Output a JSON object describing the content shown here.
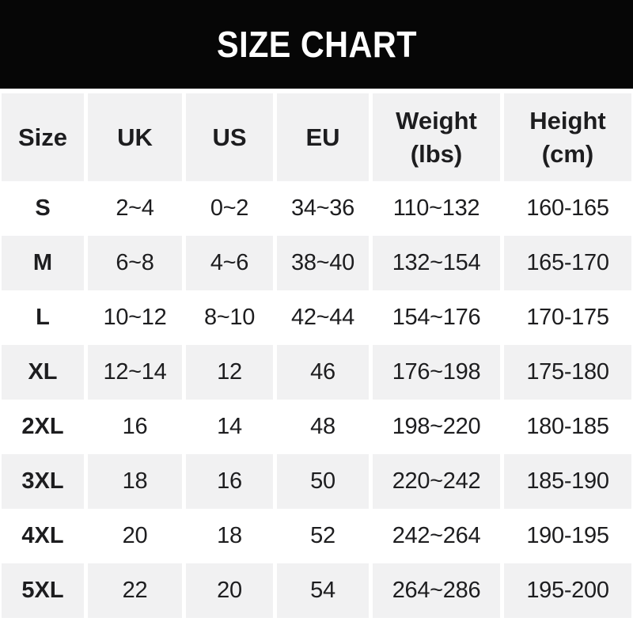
{
  "banner": {
    "title": "SIZE CHART",
    "bg_color": "#060606",
    "text_color": "#ffffff"
  },
  "table": {
    "colors": {
      "header_bg": "#f1f1f2",
      "alt_row_bg": "#f1f1f2",
      "row_bg": "#ffffff",
      "text": "#1d1d1f"
    },
    "columns": [
      {
        "key": "size",
        "lines": [
          "Size"
        ]
      },
      {
        "key": "uk",
        "lines": [
          "UK"
        ]
      },
      {
        "key": "us",
        "lines": [
          "US"
        ]
      },
      {
        "key": "eu",
        "lines": [
          "EU"
        ]
      },
      {
        "key": "weight",
        "lines": [
          "Weight",
          "(lbs)"
        ]
      },
      {
        "key": "height",
        "lines": [
          "Height",
          "(cm)"
        ]
      }
    ],
    "rows": [
      [
        "S",
        "2~4",
        "0~2",
        "34~36",
        "110~132",
        "160-165"
      ],
      [
        "M",
        "6~8",
        "4~6",
        "38~40",
        "132~154",
        "165-170"
      ],
      [
        "L",
        "10~12",
        "8~10",
        "42~44",
        "154~176",
        "170-175"
      ],
      [
        "XL",
        "12~14",
        "12",
        "46",
        "176~198",
        "175-180"
      ],
      [
        "2XL",
        "16",
        "14",
        "48",
        "198~220",
        "180-185"
      ],
      [
        "3XL",
        "18",
        "16",
        "50",
        "220~242",
        "185-190"
      ],
      [
        "4XL",
        "20",
        "18",
        "52",
        "242~264",
        "190-195"
      ],
      [
        "5XL",
        "22",
        "20",
        "54",
        "264~286",
        "195-200"
      ]
    ]
  }
}
